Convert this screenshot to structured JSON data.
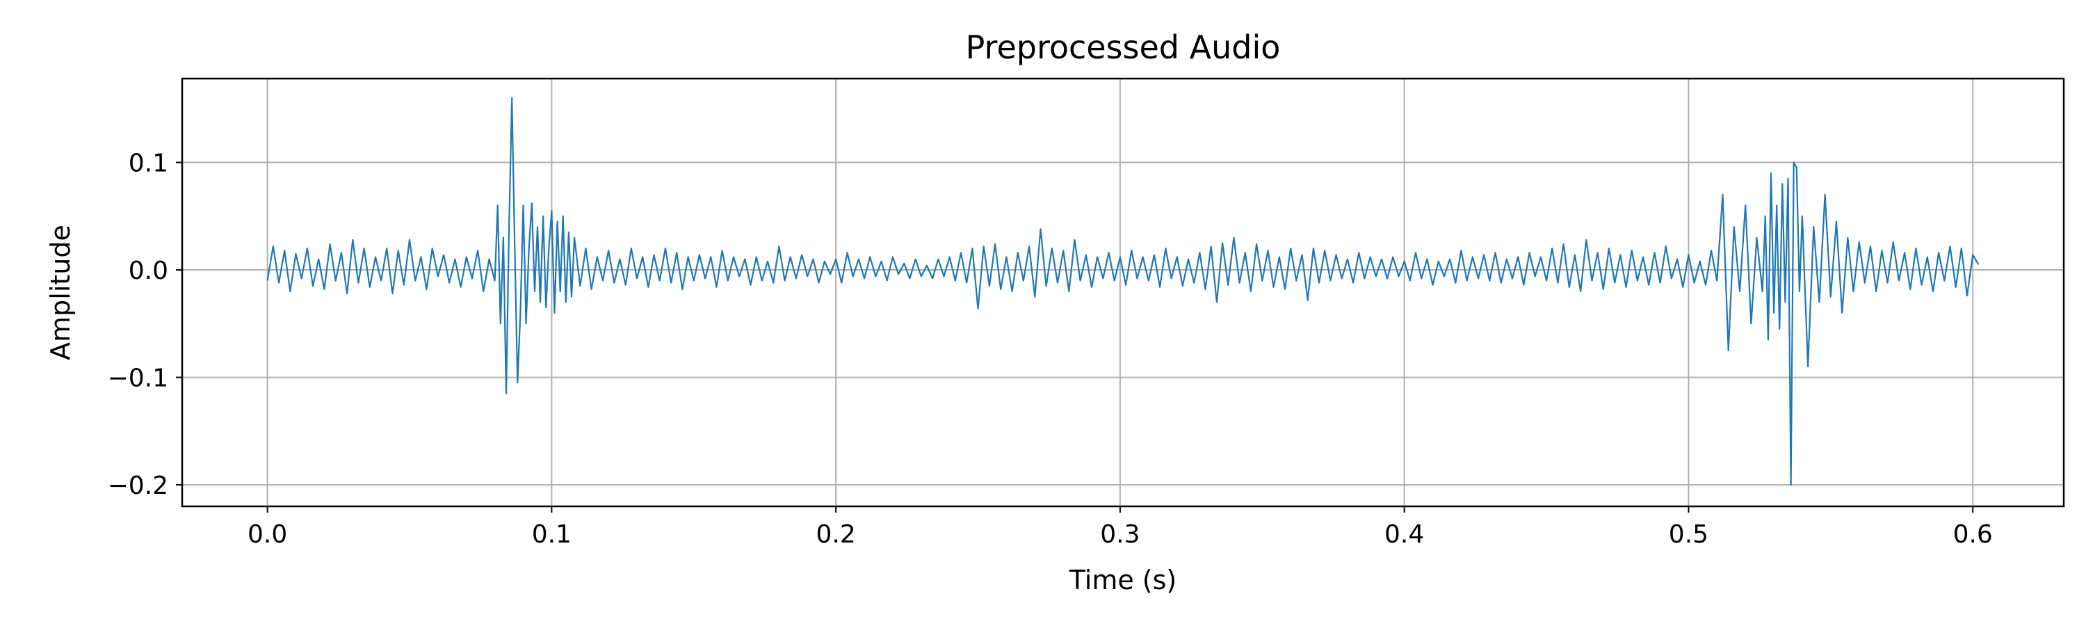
{
  "chart_data": {
    "type": "line",
    "title": "Preprocessed Audio",
    "xlabel": "Time (s)",
    "ylabel": "Amplitude",
    "xlim": [
      -0.03,
      0.632
    ],
    "ylim": [
      -0.22,
      0.178
    ],
    "xticks": [
      0.0,
      0.1,
      0.2,
      0.3,
      0.4,
      0.5,
      0.6
    ],
    "xtick_labels": [
      "0.0",
      "0.1",
      "0.2",
      "0.3",
      "0.4",
      "0.5",
      "0.6"
    ],
    "yticks": [
      -0.2,
      -0.1,
      0.0,
      0.1
    ],
    "ytick_labels": [
      "−0.2",
      "−0.1",
      "0.0",
      "0.1"
    ],
    "grid": true,
    "legend": "none",
    "series": [
      {
        "color": "#1f77b4",
        "x": [
          0.0,
          0.002,
          0.004,
          0.006,
          0.008,
          0.01,
          0.012,
          0.014,
          0.016,
          0.018,
          0.02,
          0.022,
          0.024,
          0.026,
          0.028,
          0.03,
          0.032,
          0.034,
          0.036,
          0.038,
          0.04,
          0.042,
          0.044,
          0.046,
          0.048,
          0.05,
          0.052,
          0.054,
          0.056,
          0.058,
          0.06,
          0.062,
          0.064,
          0.066,
          0.068,
          0.07,
          0.072,
          0.074,
          0.076,
          0.078,
          0.08,
          0.081,
          0.082,
          0.083,
          0.084,
          0.085,
          0.086,
          0.087,
          0.088,
          0.089,
          0.09,
          0.091,
          0.092,
          0.093,
          0.094,
          0.095,
          0.096,
          0.097,
          0.098,
          0.099,
          0.1,
          0.101,
          0.102,
          0.103,
          0.104,
          0.105,
          0.106,
          0.107,
          0.108,
          0.11,
          0.112,
          0.114,
          0.116,
          0.118,
          0.12,
          0.122,
          0.124,
          0.126,
          0.128,
          0.13,
          0.132,
          0.134,
          0.136,
          0.138,
          0.14,
          0.142,
          0.144,
          0.146,
          0.148,
          0.15,
          0.152,
          0.154,
          0.156,
          0.158,
          0.16,
          0.162,
          0.164,
          0.166,
          0.168,
          0.17,
          0.172,
          0.174,
          0.176,
          0.178,
          0.18,
          0.182,
          0.184,
          0.186,
          0.188,
          0.19,
          0.192,
          0.194,
          0.196,
          0.198,
          0.2,
          0.202,
          0.204,
          0.206,
          0.208,
          0.21,
          0.212,
          0.214,
          0.216,
          0.218,
          0.22,
          0.222,
          0.224,
          0.226,
          0.228,
          0.23,
          0.232,
          0.234,
          0.236,
          0.238,
          0.24,
          0.242,
          0.244,
          0.246,
          0.248,
          0.25,
          0.252,
          0.254,
          0.256,
          0.258,
          0.26,
          0.262,
          0.264,
          0.266,
          0.268,
          0.27,
          0.272,
          0.274,
          0.276,
          0.278,
          0.28,
          0.282,
          0.284,
          0.286,
          0.288,
          0.29,
          0.292,
          0.294,
          0.296,
          0.298,
          0.3,
          0.302,
          0.304,
          0.306,
          0.308,
          0.31,
          0.312,
          0.314,
          0.316,
          0.318,
          0.32,
          0.322,
          0.324,
          0.326,
          0.328,
          0.33,
          0.332,
          0.334,
          0.336,
          0.338,
          0.34,
          0.342,
          0.344,
          0.346,
          0.348,
          0.35,
          0.352,
          0.354,
          0.356,
          0.358,
          0.36,
          0.362,
          0.364,
          0.366,
          0.368,
          0.37,
          0.372,
          0.374,
          0.376,
          0.378,
          0.38,
          0.382,
          0.384,
          0.386,
          0.388,
          0.39,
          0.392,
          0.394,
          0.396,
          0.398,
          0.4,
          0.402,
          0.404,
          0.406,
          0.408,
          0.41,
          0.412,
          0.414,
          0.416,
          0.418,
          0.42,
          0.422,
          0.424,
          0.426,
          0.428,
          0.43,
          0.432,
          0.434,
          0.436,
          0.438,
          0.44,
          0.442,
          0.444,
          0.446,
          0.448,
          0.45,
          0.452,
          0.454,
          0.456,
          0.458,
          0.46,
          0.462,
          0.464,
          0.466,
          0.468,
          0.47,
          0.472,
          0.474,
          0.476,
          0.478,
          0.48,
          0.482,
          0.484,
          0.486,
          0.488,
          0.49,
          0.492,
          0.494,
          0.496,
          0.498,
          0.5,
          0.502,
          0.504,
          0.506,
          0.508,
          0.51,
          0.512,
          0.514,
          0.516,
          0.518,
          0.52,
          0.522,
          0.524,
          0.526,
          0.527,
          0.528,
          0.529,
          0.53,
          0.531,
          0.532,
          0.533,
          0.534,
          0.535,
          0.536,
          0.537,
          0.538,
          0.539,
          0.54,
          0.542,
          0.544,
          0.546,
          0.548,
          0.55,
          0.552,
          0.554,
          0.556,
          0.558,
          0.56,
          0.562,
          0.564,
          0.566,
          0.568,
          0.57,
          0.572,
          0.574,
          0.576,
          0.578,
          0.58,
          0.582,
          0.584,
          0.586,
          0.588,
          0.59,
          0.592,
          0.594,
          0.596,
          0.598,
          0.6,
          0.602
        ],
        "y": [
          -0.01,
          0.022,
          -0.012,
          0.018,
          -0.02,
          0.015,
          -0.008,
          0.02,
          -0.015,
          0.01,
          -0.018,
          0.024,
          -0.01,
          0.016,
          -0.022,
          0.028,
          -0.012,
          0.02,
          -0.016,
          0.012,
          -0.01,
          0.02,
          -0.022,
          0.018,
          -0.014,
          0.028,
          -0.01,
          0.012,
          -0.018,
          0.02,
          -0.006,
          0.014,
          -0.012,
          0.01,
          -0.016,
          0.012,
          -0.008,
          0.018,
          -0.02,
          0.01,
          -0.01,
          0.06,
          -0.05,
          0.03,
          -0.115,
          0.04,
          0.16,
          0.02,
          -0.105,
          -0.04,
          0.06,
          -0.05,
          0.02,
          0.062,
          -0.02,
          0.04,
          -0.03,
          0.05,
          -0.035,
          0.02,
          0.055,
          -0.04,
          0.045,
          -0.02,
          0.05,
          -0.03,
          0.035,
          -0.025,
          0.03,
          -0.015,
          0.02,
          -0.018,
          0.012,
          -0.01,
          0.018,
          -0.012,
          0.01,
          -0.014,
          0.02,
          -0.008,
          0.012,
          -0.016,
          0.014,
          -0.01,
          0.02,
          -0.012,
          0.016,
          -0.018,
          0.012,
          -0.01,
          0.014,
          -0.008,
          0.012,
          -0.016,
          0.018,
          -0.01,
          0.012,
          -0.006,
          0.01,
          -0.014,
          0.012,
          -0.01,
          0.008,
          -0.012,
          0.022,
          -0.01,
          0.012,
          -0.008,
          0.014,
          -0.006,
          0.01,
          -0.012,
          0.008,
          -0.004,
          0.01,
          -0.012,
          0.016,
          -0.006,
          0.01,
          -0.008,
          0.012,
          -0.006,
          0.008,
          -0.01,
          0.012,
          -0.004,
          0.006,
          -0.008,
          0.01,
          -0.006,
          0.004,
          -0.008,
          0.01,
          -0.006,
          0.012,
          -0.01,
          0.016,
          -0.012,
          0.02,
          -0.036,
          0.022,
          -0.015,
          0.024,
          -0.018,
          0.012,
          -0.02,
          0.016,
          -0.01,
          0.022,
          -0.025,
          0.038,
          -0.015,
          0.02,
          -0.012,
          0.018,
          -0.02,
          0.028,
          -0.01,
          0.014,
          -0.016,
          0.012,
          -0.008,
          0.016,
          -0.01,
          0.012,
          -0.014,
          0.018,
          -0.008,
          0.012,
          -0.01,
          0.014,
          -0.016,
          0.02,
          -0.008,
          0.012,
          -0.015,
          0.01,
          -0.012,
          0.016,
          -0.018,
          0.022,
          -0.03,
          0.025,
          -0.014,
          0.03,
          -0.012,
          0.016,
          -0.02,
          0.024,
          -0.01,
          0.018,
          -0.016,
          0.012,
          -0.018,
          0.02,
          -0.01,
          0.014,
          -0.028,
          0.02,
          -0.012,
          0.018,
          -0.01,
          0.014,
          -0.008,
          0.01,
          -0.012,
          0.016,
          -0.008,
          0.012,
          -0.006,
          0.01,
          -0.008,
          0.012,
          -0.006,
          0.008,
          -0.01,
          0.016,
          -0.008,
          0.01,
          -0.014,
          0.008,
          -0.006,
          0.01,
          -0.012,
          0.018,
          -0.01,
          0.012,
          -0.008,
          0.014,
          -0.01,
          0.016,
          -0.012,
          0.01,
          -0.008,
          0.012,
          -0.014,
          0.016,
          -0.006,
          0.012,
          -0.01,
          0.02,
          -0.012,
          0.024,
          -0.016,
          0.014,
          -0.02,
          0.028,
          -0.01,
          0.016,
          -0.018,
          0.02,
          -0.012,
          0.014,
          -0.016,
          0.018,
          -0.01,
          0.012,
          -0.014,
          0.016,
          -0.012,
          0.022,
          -0.008,
          0.01,
          -0.016,
          0.014,
          -0.012,
          0.008,
          -0.014,
          0.018,
          -0.01,
          0.07,
          -0.075,
          0.04,
          -0.02,
          0.06,
          -0.05,
          0.03,
          -0.02,
          0.05,
          -0.065,
          0.09,
          -0.04,
          0.06,
          -0.055,
          0.08,
          -0.03,
          0.085,
          -0.2,
          0.1,
          0.095,
          -0.02,
          0.05,
          -0.09,
          0.04,
          -0.03,
          0.07,
          -0.025,
          0.045,
          -0.04,
          0.03,
          -0.02,
          0.026,
          -0.012,
          0.022,
          -0.02,
          0.018,
          -0.012,
          0.026,
          -0.01,
          0.016,
          -0.018,
          0.02,
          -0.014,
          0.012,
          -0.02,
          0.016,
          -0.01,
          0.022,
          -0.016,
          0.02,
          -0.024,
          0.014,
          0.005
        ]
      }
    ]
  }
}
